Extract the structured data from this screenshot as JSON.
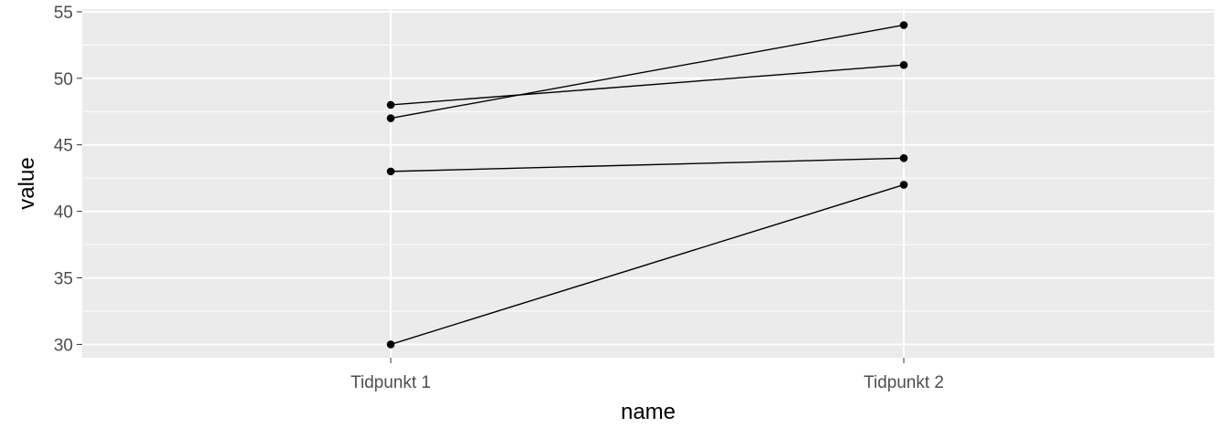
{
  "chart_data": {
    "type": "line",
    "title": "",
    "xlabel": "name",
    "ylabel": "value",
    "categories": [
      "Tidpunkt 1",
      "Tidpunkt 2"
    ],
    "ylim": [
      29,
      55.2
    ],
    "yticks": [
      30,
      35,
      40,
      45,
      50,
      55
    ],
    "grid": true,
    "legend": "none",
    "series": [
      {
        "values": [
          47,
          54
        ]
      },
      {
        "values": [
          48,
          51
        ]
      },
      {
        "values": [
          43,
          44
        ]
      },
      {
        "values": [
          30,
          42
        ]
      }
    ],
    "colors": {
      "panel": "#EBEBEB",
      "grid": "#FFFFFF",
      "line": "#000000",
      "point": "#000000",
      "tick_text": "#4D4D4D"
    }
  }
}
